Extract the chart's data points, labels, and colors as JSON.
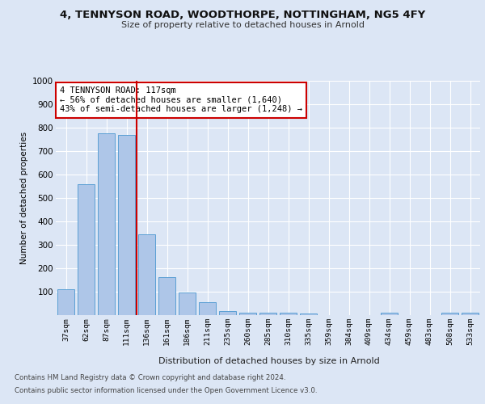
{
  "title1": "4, TENNYSON ROAD, WOODTHORPE, NOTTINGHAM, NG5 4FY",
  "title2": "Size of property relative to detached houses in Arnold",
  "xlabel": "Distribution of detached houses by size in Arnold",
  "ylabel": "Number of detached properties",
  "categories": [
    "37sqm",
    "62sqm",
    "87sqm",
    "111sqm",
    "136sqm",
    "161sqm",
    "186sqm",
    "211sqm",
    "235sqm",
    "260sqm",
    "285sqm",
    "310sqm",
    "335sqm",
    "359sqm",
    "384sqm",
    "409sqm",
    "434sqm",
    "459sqm",
    "483sqm",
    "508sqm",
    "533sqm"
  ],
  "values": [
    112,
    560,
    775,
    770,
    345,
    163,
    97,
    55,
    17,
    11,
    11,
    11,
    8,
    0,
    0,
    0,
    11,
    0,
    0,
    11,
    11
  ],
  "bar_color": "#aec6e8",
  "bar_edge_color": "#5a9fd4",
  "vline_x_index": 3,
  "vline_color": "#cc0000",
  "annotation_text": "4 TENNYSON ROAD: 117sqm\n← 56% of detached houses are smaller (1,640)\n43% of semi-detached houses are larger (1,248) →",
  "annotation_box_color": "#ffffff",
  "annotation_box_edge": "#cc0000",
  "bg_color": "#dce6f5",
  "plot_bg_color": "#dce6f5",
  "grid_color": "#ffffff",
  "footnote1": "Contains HM Land Registry data © Crown copyright and database right 2024.",
  "footnote2": "Contains public sector information licensed under the Open Government Licence v3.0.",
  "ylim": [
    0,
    1000
  ],
  "yticks": [
    0,
    100,
    200,
    300,
    400,
    500,
    600,
    700,
    800,
    900,
    1000
  ]
}
